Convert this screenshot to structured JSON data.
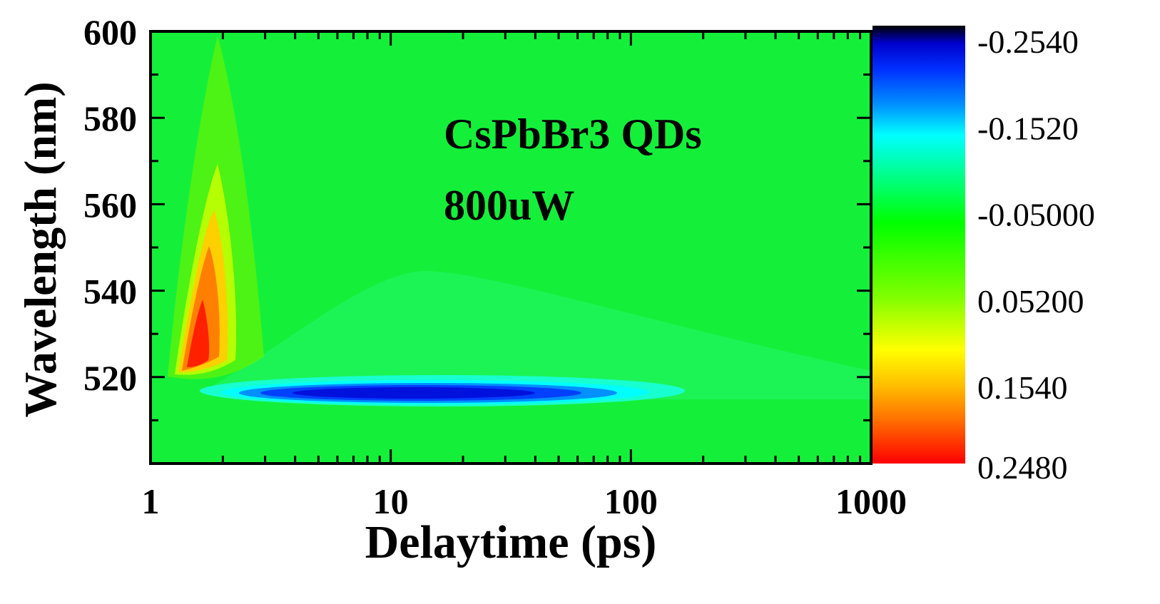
{
  "chart_data": {
    "type": "heatmap",
    "title": "",
    "xlabel": "Delaytime (ps)",
    "ylabel": "Wavelength (nm)",
    "x_scale": "log",
    "xlim": [
      1,
      1000
    ],
    "ylim": [
      500,
      600
    ],
    "x_major_ticks": [
      1,
      10,
      100,
      1000
    ],
    "x_tick_labels": [
      "1",
      "10",
      "100",
      "1000"
    ],
    "y_major_ticks": [
      520,
      540,
      560,
      580,
      600
    ],
    "y_tick_labels": [
      "520",
      "540",
      "560",
      "580",
      "600"
    ],
    "annotations": [
      "CsPbBr3 QDs",
      "800uW"
    ],
    "background_value": 0.0,
    "features": [
      {
        "name": "photoinduced-absorption",
        "peak_delay": 1.6,
        "peak_wavelength": 527,
        "value": 0.248
      },
      {
        "name": "ground-state-bleach",
        "peak_delay": 14,
        "peak_wavelength": 516,
        "value": -0.254
      }
    ],
    "colorbar": {
      "tick_labels": [
        "-0.2540",
        "-0.1520",
        "-0.05000",
        "0.05200",
        "0.1540",
        "0.2480"
      ],
      "tick_values": [
        -0.254,
        -0.152,
        -0.05,
        0.052,
        0.154,
        0.248
      ],
      "min": -0.254,
      "max": 0.248,
      "colors": [
        "#000000",
        "#0000ff",
        "#0090ff",
        "#00ffff",
        "#00ff00",
        "#ffff00",
        "#ff8c00",
        "#ff0000"
      ]
    }
  }
}
